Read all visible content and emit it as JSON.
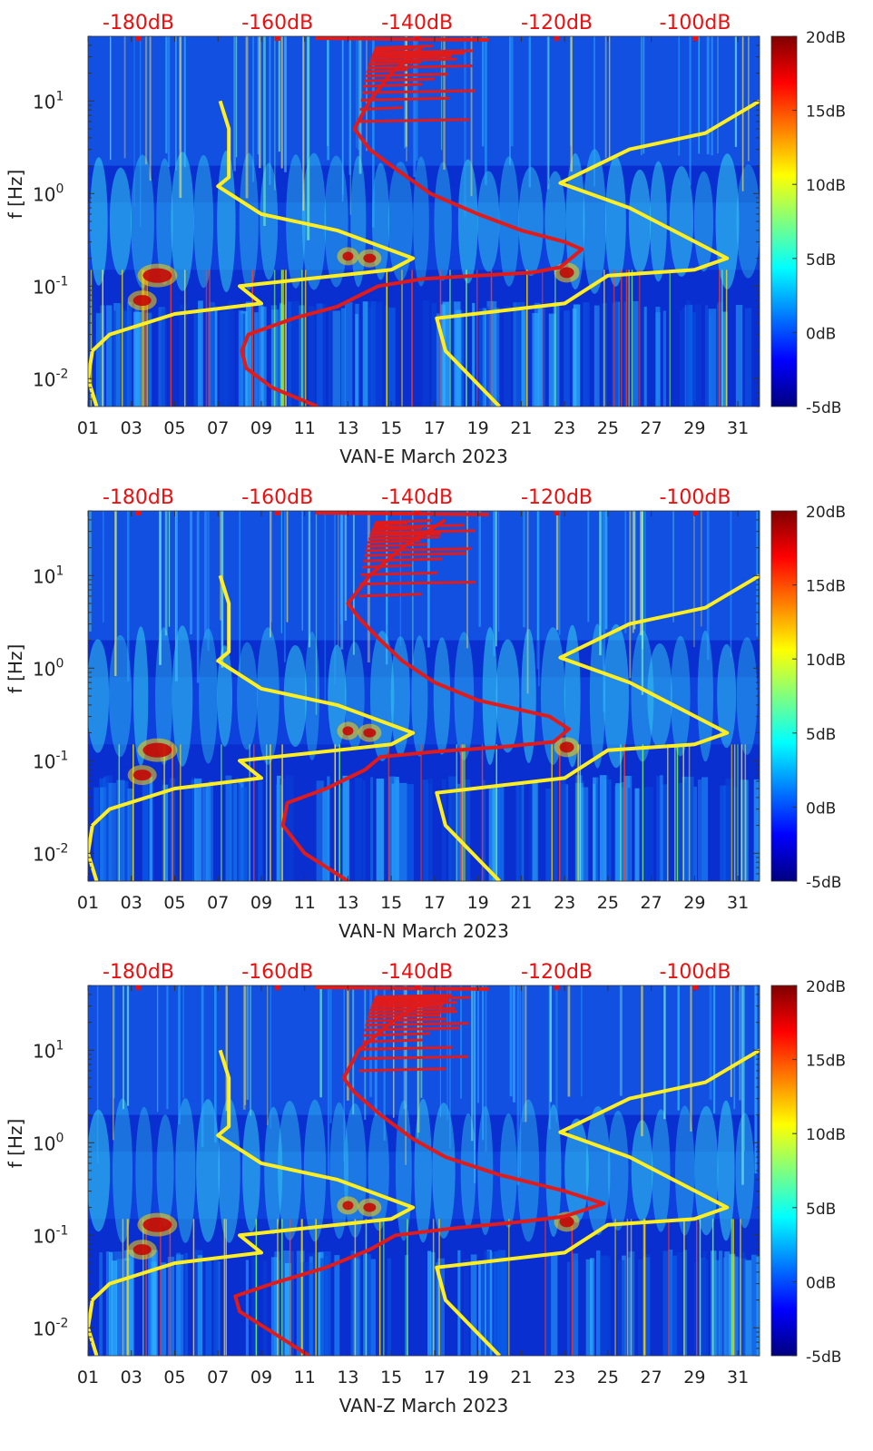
{
  "colors": {
    "top_axis": "#e81010",
    "red_curve": "#e11a1a",
    "yellow_curve": "#ffee22",
    "axis_text": "#222222",
    "colormap": [
      "#00007f",
      "#0000ff",
      "#007fff",
      "#00ffff",
      "#7fff7f",
      "#ffff00",
      "#ff7f00",
      "#ff0000",
      "#7f0000"
    ]
  },
  "chart_data": [
    {
      "type": "heatmap",
      "xlabel": "VAN-E March 2023",
      "ylabel": "f [Hz]",
      "x_ticks": [
        "01",
        "03",
        "05",
        "07",
        "09",
        "11",
        "13",
        "15",
        "17",
        "19",
        "21",
        "23",
        "25",
        "27",
        "29",
        "31"
      ],
      "xlim": [
        1,
        32
      ],
      "y_scale": "log",
      "ylim": [
        0.005,
        50
      ],
      "y_ticks": [
        {
          "v": 10,
          "label": "10",
          "exp": "1"
        },
        {
          "v": 1,
          "label": "10",
          "exp": "0"
        },
        {
          "v": 0.1,
          "label": "10",
          "exp": "-1"
        },
        {
          "v": 0.01,
          "label": "10",
          "exp": "-2"
        }
      ],
      "top_axis_labels": [
        "-180dB",
        "-160dB",
        "-140dB",
        "-120dB",
        "-100dB"
      ],
      "colorbar": {
        "range": [
          -5,
          20
        ],
        "labels": [
          "20dB",
          "15dB",
          "10dB",
          "5dB",
          "0dB",
          "-5dB"
        ]
      },
      "series": [
        {
          "color": "red",
          "points": [
            [
              11.6,
              0.005
            ],
            [
              9.5,
              0.008
            ],
            [
              8.3,
              0.013
            ],
            [
              8.1,
              0.02
            ],
            [
              8.4,
              0.03
            ],
            [
              10.5,
              0.045
            ],
            [
              12.5,
              0.06
            ],
            [
              14.4,
              0.1
            ],
            [
              16.5,
              0.12
            ],
            [
              19,
              0.13
            ],
            [
              21.5,
              0.14
            ],
            [
              22.8,
              0.16
            ],
            [
              23.8,
              0.25
            ],
            [
              23,
              0.3
            ],
            [
              21,
              0.4
            ],
            [
              19,
              0.6
            ],
            [
              16.8,
              1
            ],
            [
              15,
              2
            ],
            [
              14,
              3
            ],
            [
              13.3,
              5
            ],
            [
              14,
              10
            ],
            [
              15,
              20
            ],
            [
              16.5,
              40
            ]
          ]
        },
        {
          "color": "yellow",
          "points": [
            [
              1.4,
              0.005
            ],
            [
              1,
              0.01
            ],
            [
              1.2,
              0.02
            ],
            [
              2,
              0.03
            ],
            [
              5,
              0.05
            ],
            [
              9,
              0.065
            ],
            [
              8,
              0.1
            ],
            [
              15,
              0.15
            ],
            [
              16,
              0.2
            ],
            [
              12.5,
              0.4
            ],
            [
              9,
              0.6
            ],
            [
              7,
              1.2
            ],
            [
              7.5,
              1.5
            ],
            [
              7.5,
              5
            ],
            [
              7.1,
              10
            ]
          ]
        },
        {
          "color": "yellow",
          "points": [
            [
              20,
              0.005
            ],
            [
              17.5,
              0.02
            ],
            [
              17.1,
              0.045
            ],
            [
              23,
              0.065
            ],
            [
              25,
              0.13
            ],
            [
              29,
              0.15
            ],
            [
              30.5,
              0.2
            ],
            [
              26,
              0.7
            ],
            [
              22.8,
              1.3
            ],
            [
              26,
              3
            ],
            [
              29.5,
              4.5
            ],
            [
              32,
              10
            ]
          ]
        }
      ]
    },
    {
      "type": "heatmap",
      "xlabel": "VAN-N March 2023",
      "ylabel": "f [Hz]",
      "x_ticks": [
        "01",
        "03",
        "05",
        "07",
        "09",
        "11",
        "13",
        "15",
        "17",
        "19",
        "21",
        "23",
        "25",
        "27",
        "29",
        "31"
      ],
      "xlim": [
        1,
        32
      ],
      "y_scale": "log",
      "ylim": [
        0.005,
        50
      ],
      "y_ticks": [
        {
          "v": 10,
          "label": "10",
          "exp": "1"
        },
        {
          "v": 1,
          "label": "10",
          "exp": "0"
        },
        {
          "v": 0.1,
          "label": "10",
          "exp": "-1"
        },
        {
          "v": 0.01,
          "label": "10",
          "exp": "-2"
        }
      ],
      "top_axis_labels": [
        "-180dB",
        "-160dB",
        "-140dB",
        "-120dB",
        "-100dB"
      ],
      "colorbar": {
        "range": [
          -5,
          20
        ],
        "labels": [
          "20dB",
          "15dB",
          "10dB",
          "5dB",
          "0dB",
          "-5dB"
        ]
      },
      "series": [
        {
          "color": "red",
          "points": [
            [
              13,
              0.005
            ],
            [
              11,
              0.01
            ],
            [
              10,
              0.02
            ],
            [
              10.2,
              0.035
            ],
            [
              12,
              0.05
            ],
            [
              13.8,
              0.08
            ],
            [
              14.5,
              0.11
            ],
            [
              17,
              0.125
            ],
            [
              20,
              0.14
            ],
            [
              22.5,
              0.16
            ],
            [
              23.2,
              0.22
            ],
            [
              22.3,
              0.3
            ],
            [
              19,
              0.45
            ],
            [
              17,
              0.7
            ],
            [
              15.5,
              1.2
            ],
            [
              14.5,
              2
            ],
            [
              13.5,
              3.5
            ],
            [
              13,
              5
            ],
            [
              14,
              10
            ],
            [
              15.5,
              20
            ],
            [
              17.5,
              40
            ]
          ]
        },
        {
          "color": "yellow",
          "points": [
            [
              1.4,
              0.005
            ],
            [
              1,
              0.01
            ],
            [
              1.2,
              0.02
            ],
            [
              2,
              0.03
            ],
            [
              5,
              0.05
            ],
            [
              9,
              0.065
            ],
            [
              8,
              0.1
            ],
            [
              15,
              0.15
            ],
            [
              16,
              0.2
            ],
            [
              12.5,
              0.4
            ],
            [
              9,
              0.6
            ],
            [
              7,
              1.2
            ],
            [
              7.5,
              1.5
            ],
            [
              7.5,
              5
            ],
            [
              7.1,
              10
            ]
          ]
        },
        {
          "color": "yellow",
          "points": [
            [
              20,
              0.005
            ],
            [
              17.5,
              0.02
            ],
            [
              17.1,
              0.045
            ],
            [
              23,
              0.065
            ],
            [
              25,
              0.13
            ],
            [
              29,
              0.15
            ],
            [
              30.5,
              0.2
            ],
            [
              26,
              0.7
            ],
            [
              22.8,
              1.3
            ],
            [
              26,
              3
            ],
            [
              29.5,
              4.5
            ],
            [
              32,
              10
            ]
          ]
        }
      ]
    },
    {
      "type": "heatmap",
      "xlabel": "VAN-Z March 2023",
      "ylabel": "f [Hz]",
      "x_ticks": [
        "01",
        "03",
        "05",
        "07",
        "09",
        "11",
        "13",
        "15",
        "17",
        "19",
        "21",
        "23",
        "25",
        "27",
        "29",
        "31"
      ],
      "xlim": [
        1,
        32
      ],
      "y_scale": "log",
      "ylim": [
        0.005,
        50
      ],
      "y_ticks": [
        {
          "v": 10,
          "label": "10",
          "exp": "1"
        },
        {
          "v": 1,
          "label": "10",
          "exp": "0"
        },
        {
          "v": 0.1,
          "label": "10",
          "exp": "-1"
        },
        {
          "v": 0.01,
          "label": "10",
          "exp": "-2"
        }
      ],
      "top_axis_labels": [
        "-180dB",
        "-160dB",
        "-140dB",
        "-120dB",
        "-100dB"
      ],
      "colorbar": {
        "range": [
          -5,
          20
        ],
        "labels": [
          "20dB",
          "15dB",
          "10dB",
          "5dB",
          "0dB",
          "-5dB"
        ]
      },
      "series": [
        {
          "color": "red",
          "points": [
            [
              11.2,
              0.005
            ],
            [
              9.5,
              0.009
            ],
            [
              8,
              0.015
            ],
            [
              7.8,
              0.022
            ],
            [
              9.5,
              0.03
            ],
            [
              12,
              0.045
            ],
            [
              14,
              0.07
            ],
            [
              15.2,
              0.1
            ],
            [
              18,
              0.12
            ],
            [
              21,
              0.14
            ],
            [
              23,
              0.16
            ],
            [
              24.8,
              0.22
            ],
            [
              23,
              0.3
            ],
            [
              20,
              0.45
            ],
            [
              17.5,
              0.7
            ],
            [
              16,
              1.1
            ],
            [
              14.5,
              2
            ],
            [
              13.3,
              3.5
            ],
            [
              12.8,
              5
            ],
            [
              13.5,
              10
            ],
            [
              15,
              20
            ],
            [
              17,
              40
            ]
          ]
        },
        {
          "color": "yellow",
          "points": [
            [
              1.4,
              0.005
            ],
            [
              1,
              0.01
            ],
            [
              1.2,
              0.02
            ],
            [
              2,
              0.03
            ],
            [
              5,
              0.05
            ],
            [
              9,
              0.065
            ],
            [
              8,
              0.1
            ],
            [
              15,
              0.15
            ],
            [
              16,
              0.2
            ],
            [
              12.5,
              0.4
            ],
            [
              9,
              0.6
            ],
            [
              7,
              1.2
            ],
            [
              7.5,
              1.5
            ],
            [
              7.5,
              5
            ],
            [
              7.1,
              10
            ]
          ]
        },
        {
          "color": "yellow",
          "points": [
            [
              20,
              0.005
            ],
            [
              17.5,
              0.02
            ],
            [
              17.1,
              0.045
            ],
            [
              23,
              0.065
            ],
            [
              25,
              0.13
            ],
            [
              29,
              0.15
            ],
            [
              30.5,
              0.2
            ],
            [
              26,
              0.7
            ],
            [
              22.8,
              1.3
            ],
            [
              26,
              3
            ],
            [
              29.5,
              4.5
            ],
            [
              32,
              10
            ]
          ]
        }
      ]
    }
  ]
}
